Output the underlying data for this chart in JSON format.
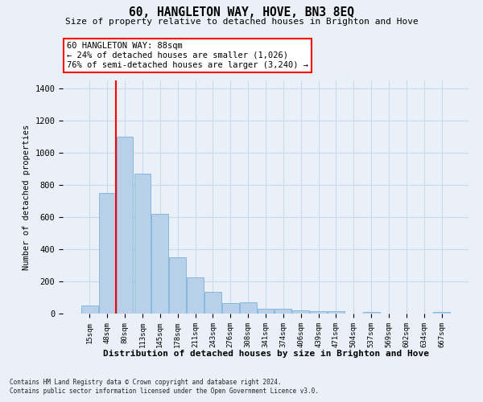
{
  "title": "60, HANGLETON WAY, HOVE, BN3 8EQ",
  "subtitle": "Size of property relative to detached houses in Brighton and Hove",
  "xlabel": "Distribution of detached houses by size in Brighton and Hove",
  "ylabel": "Number of detached properties",
  "footer1": "Contains HM Land Registry data © Crown copyright and database right 2024.",
  "footer2": "Contains public sector information licensed under the Open Government Licence v3.0.",
  "annotation_title": "60 HANGLETON WAY: 88sqm",
  "annotation_line1": "← 24% of detached houses are smaller (1,026)",
  "annotation_line2": "76% of semi-detached houses are larger (3,240) →",
  "bar_categories": [
    "15sqm",
    "48sqm",
    "80sqm",
    "113sqm",
    "145sqm",
    "178sqm",
    "211sqm",
    "243sqm",
    "276sqm",
    "308sqm",
    "341sqm",
    "374sqm",
    "406sqm",
    "439sqm",
    "471sqm",
    "504sqm",
    "537sqm",
    "569sqm",
    "602sqm",
    "634sqm",
    "667sqm"
  ],
  "bar_values": [
    50,
    750,
    1100,
    870,
    620,
    350,
    225,
    135,
    65,
    70,
    30,
    30,
    22,
    15,
    15,
    0,
    12,
    0,
    0,
    0,
    12
  ],
  "bar_color": "#b8d0ea",
  "bar_edge_color": "#6aaad4",
  "grid_color": "#d0d8e8",
  "background_color": "#eaf0f8",
  "red_line_bar_index": 2,
  "ylim": [
    0,
    1450
  ],
  "yticks": [
    0,
    200,
    400,
    600,
    800,
    1000,
    1200,
    1400
  ]
}
